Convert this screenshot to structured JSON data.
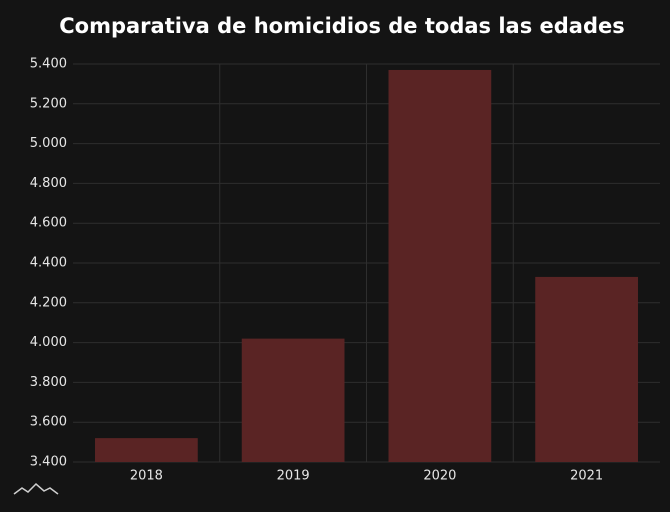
{
  "chart_data": {
    "type": "bar",
    "title": "Comparativa de homicidios de todas las edades",
    "categories": [
      "2018",
      "2019",
      "2020",
      "2021"
    ],
    "values": [
      3520,
      4020,
      5370,
      4330
    ],
    "color": "#5a2424",
    "ylim": [
      3400,
      5400
    ],
    "yticks": [
      {
        "value": 3400,
        "label": "3.400"
      },
      {
        "value": 3600,
        "label": "3.600"
      },
      {
        "value": 3800,
        "label": "3.800"
      },
      {
        "value": 4000,
        "label": "4.000"
      },
      {
        "value": 4200,
        "label": "4.200"
      },
      {
        "value": 4400,
        "label": "4.400"
      },
      {
        "value": 4600,
        "label": "4.600"
      },
      {
        "value": 4800,
        "label": "4.800"
      },
      {
        "value": 5000,
        "label": "5.000"
      },
      {
        "value": 5200,
        "label": "5.200"
      },
      {
        "value": 5400,
        "label": "5.400"
      }
    ],
    "grid": true
  }
}
